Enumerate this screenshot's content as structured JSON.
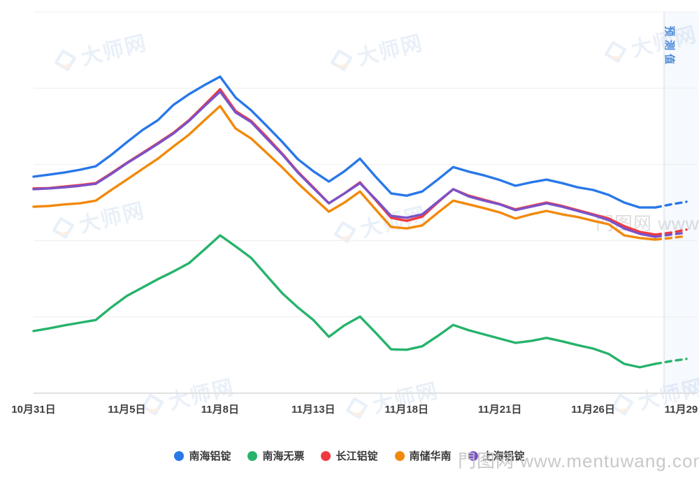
{
  "chart_data": {
    "type": "line",
    "title": "",
    "x_tick_labels": [
      "10月31日",
      "11月5日",
      "11月8日",
      "11月13日",
      "11月18日",
      "11月21日",
      "11月26日",
      "11月29日"
    ],
    "x_tick_indices": [
      0,
      6,
      12,
      18,
      24,
      30,
      36,
      42
    ],
    "n_points": 43,
    "y_axis": {
      "visible_labels": false,
      "ylim": [
        0,
        100
      ],
      "gridline_values": [
        0,
        20,
        40,
        60,
        80,
        100
      ]
    },
    "grid": true,
    "legend_position": "bottom",
    "forecast": {
      "label": "预测值",
      "start_index": 40,
      "band_color": "rgba(84,130,220,0.05)",
      "label_color": "#4e8cd8"
    },
    "series": [
      {
        "name": "南海铝锭",
        "color": "#2878e8",
        "values": [
          56.8,
          57.3,
          57.9,
          58.6,
          59.5,
          62.5,
          65.8,
          69.0,
          71.6,
          75.6,
          78.4,
          80.8,
          83.0,
          77.5,
          74.2,
          70.1,
          65.9,
          61.4,
          58.2,
          55.5,
          58.2,
          61.5,
          56.8,
          52.4,
          51.8,
          52.9,
          56.0,
          59.3,
          58.1,
          57.1,
          55.9,
          54.4,
          55.3,
          56.0,
          55.1,
          54.0,
          53.3,
          52.0,
          50.0,
          48.7,
          48.7,
          49.5,
          50.2
        ]
      },
      {
        "name": "南海无票",
        "color": "#26b36b",
        "values": [
          16.3,
          17.0,
          17.8,
          18.5,
          19.2,
          22.5,
          25.5,
          27.7,
          29.9,
          31.9,
          34.1,
          37.7,
          41.4,
          38.5,
          35.5,
          30.8,
          26.2,
          22.5,
          19.2,
          14.8,
          17.8,
          20.1,
          15.9,
          11.5,
          11.4,
          12.3,
          15.0,
          17.9,
          16.5,
          15.4,
          14.3,
          13.2,
          13.7,
          14.5,
          13.6,
          12.6,
          11.7,
          10.3,
          7.7,
          6.8,
          7.7,
          8.4,
          9.0
        ]
      },
      {
        "name": "长江铝锭",
        "color": "#ef3a3e",
        "values": [
          53.7,
          53.8,
          54.2,
          54.6,
          55.1,
          57.7,
          60.4,
          63.0,
          65.6,
          68.3,
          71.6,
          75.6,
          79.7,
          74.0,
          71.4,
          67.2,
          62.8,
          58.1,
          54.0,
          49.8,
          52.4,
          55.3,
          50.7,
          46.0,
          45.2,
          46.3,
          50.0,
          53.5,
          51.8,
          50.7,
          49.6,
          48.2,
          49.1,
          50.0,
          49.1,
          48.0,
          46.9,
          45.8,
          43.8,
          42.3,
          41.6,
          42.1,
          42.9
        ]
      },
      {
        "name": "南储华南",
        "color": "#f2890a",
        "values": [
          48.9,
          49.1,
          49.5,
          49.8,
          50.5,
          53.3,
          56.0,
          58.8,
          61.5,
          64.7,
          67.8,
          71.6,
          75.3,
          69.4,
          66.8,
          63.0,
          59.2,
          55.1,
          51.3,
          47.6,
          50.0,
          52.9,
          48.2,
          43.6,
          43.2,
          44.0,
          47.3,
          50.5,
          49.5,
          48.5,
          47.4,
          45.8,
          46.9,
          47.8,
          46.9,
          46.2,
          45.2,
          44.3,
          41.4,
          40.7,
          40.3,
          40.7,
          41.2
        ]
      },
      {
        "name": "上海铝锭",
        "color": "#7b52c8",
        "values": [
          53.5,
          53.7,
          54.0,
          54.4,
          54.9,
          57.5,
          60.3,
          62.8,
          65.4,
          68.1,
          71.4,
          75.3,
          79.1,
          73.6,
          71.1,
          66.8,
          62.6,
          57.9,
          53.8,
          49.8,
          52.4,
          55.1,
          50.9,
          46.5,
          46.0,
          46.9,
          50.2,
          53.5,
          51.6,
          50.5,
          49.5,
          48.0,
          48.9,
          49.8,
          48.9,
          47.8,
          46.7,
          45.4,
          43.2,
          41.8,
          41.0,
          41.6,
          42.1
        ]
      }
    ]
  },
  "watermarks": {
    "site_logo_text": "大师网",
    "photo_watermark_text": "門图网 www.mentuwang.com"
  }
}
